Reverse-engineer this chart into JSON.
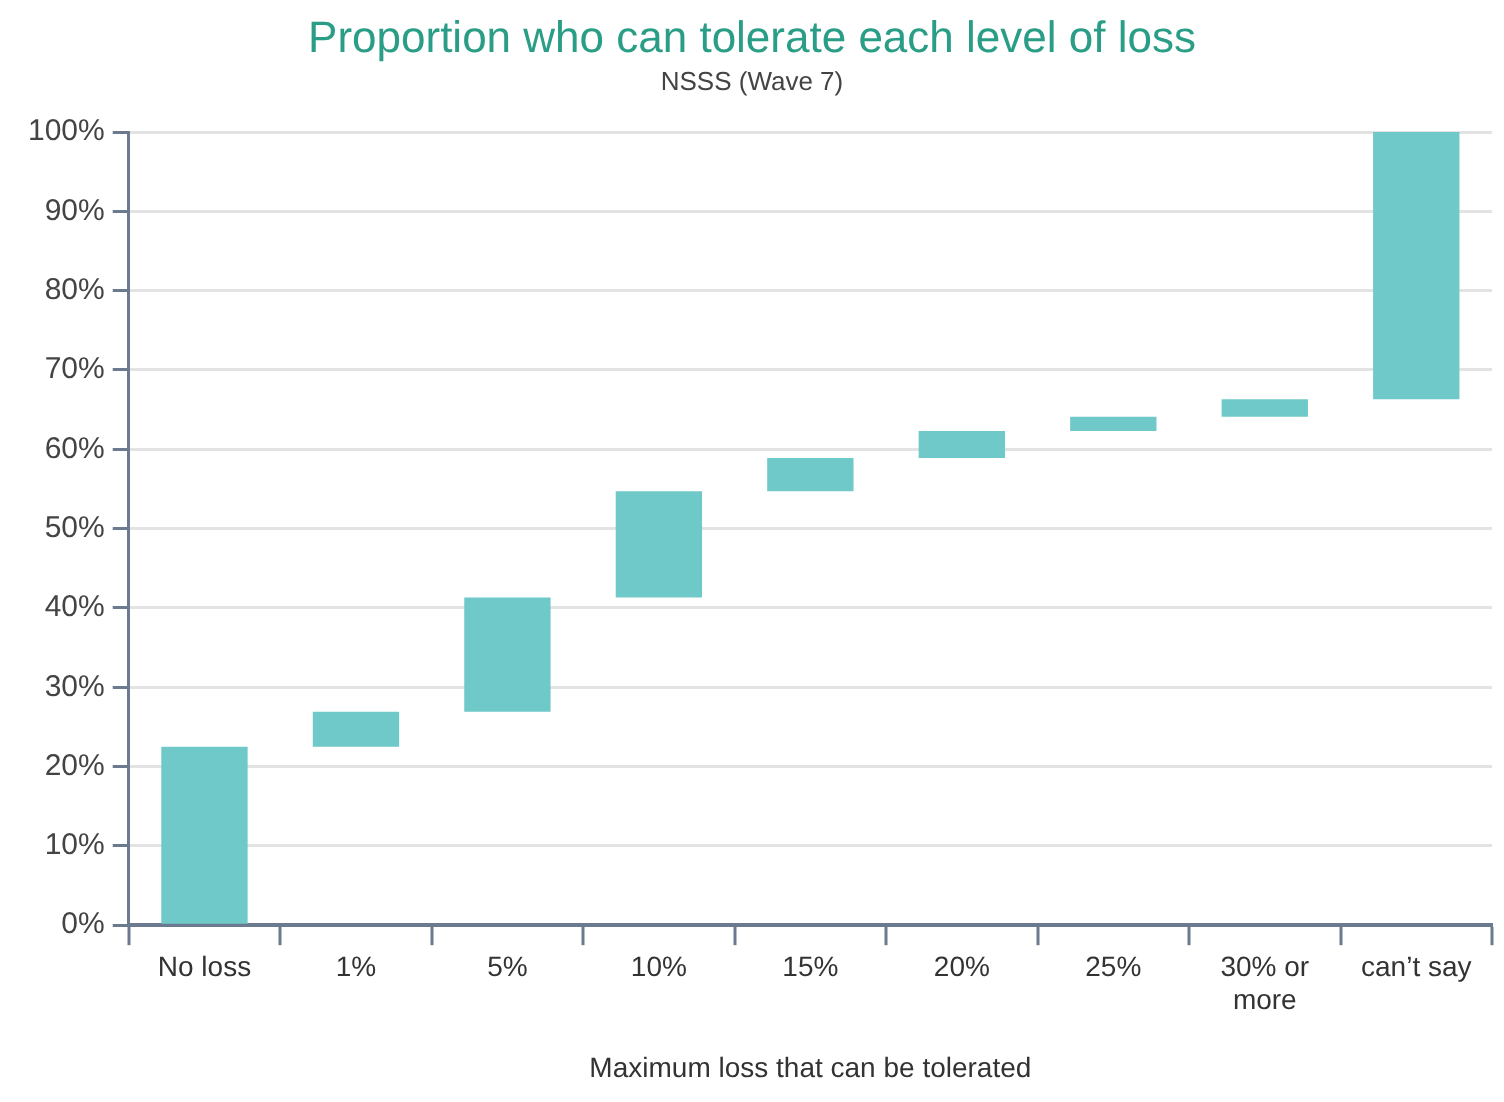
{
  "chart_data": {
    "type": "bar",
    "title": "Proportion who can tolerate each level of loss",
    "subtitle": "NSSS (Wave 7)",
    "xlabel": "Maximum loss that can be tolerated",
    "categories": [
      "No loss",
      "1%",
      "5%",
      "10%",
      "15%",
      "20%",
      "25%",
      "30% or more",
      "can’t say"
    ],
    "values": [
      22.5,
      4.4,
      14.4,
      13.4,
      4.2,
      3.4,
      1.8,
      2.2,
      33.7
    ],
    "base": [
      0,
      22.5,
      26.9,
      41.3,
      54.7,
      58.9,
      62.3,
      64.1,
      66.3
    ],
    "color": "#70c9c9",
    "ylim": [
      0,
      100
    ],
    "yticks": [
      {
        "value": 0,
        "label": "0%"
      },
      {
        "value": 10,
        "label": "10%"
      },
      {
        "value": 20,
        "label": "20%"
      },
      {
        "value": 30,
        "label": "30%"
      },
      {
        "value": 40,
        "label": "40%"
      },
      {
        "value": 50,
        "label": "50%"
      },
      {
        "value": 60,
        "label": "60%"
      },
      {
        "value": 70,
        "label": "70%"
      },
      {
        "value": 80,
        "label": "80%"
      },
      {
        "value": 90,
        "label": "90%"
      },
      {
        "value": 100,
        "label": "100%"
      }
    ],
    "grid": "y",
    "legend": false
  }
}
